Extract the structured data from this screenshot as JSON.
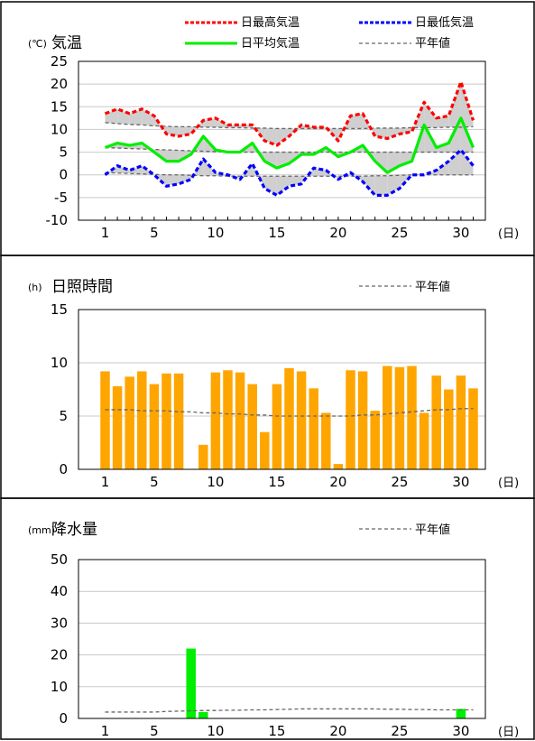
{
  "chart_data": [
    {
      "type": "line",
      "title": "気温",
      "unit": "(℃)",
      "x_unit": "(日)",
      "ylim": [
        -10,
        25
      ],
      "y_ticks": [
        25,
        20,
        15,
        10,
        5,
        0,
        -5,
        -10
      ],
      "x_ticks": [
        1,
        5,
        10,
        15,
        20,
        25,
        30
      ],
      "x": [
        1,
        2,
        3,
        4,
        5,
        6,
        7,
        8,
        9,
        10,
        11,
        12,
        13,
        14,
        15,
        16,
        17,
        18,
        19,
        20,
        21,
        22,
        23,
        24,
        25,
        26,
        27,
        28,
        29,
        30,
        31
      ],
      "series": [
        {
          "name": "日最高気温",
          "color": "#ff0000",
          "style": "dashed",
          "values": [
            13.5,
            14.5,
            13.5,
            14.5,
            13,
            9,
            8.5,
            9,
            12,
            12.5,
            11,
            11,
            11,
            7.5,
            6.5,
            8.5,
            11,
            10.5,
            10.5,
            7.5,
            13,
            13.5,
            8.5,
            8,
            9,
            9.5,
            16,
            12.5,
            13,
            20.5,
            12
          ]
        },
        {
          "name": "日最低気温",
          "color": "#0000ff",
          "style": "dashed",
          "values": [
            0,
            2,
            1,
            2,
            0,
            -2.5,
            -2,
            -1,
            3.5,
            0.5,
            0,
            -1,
            2.5,
            -3,
            -4.5,
            -2.5,
            -2,
            1.5,
            1,
            -1,
            0.5,
            -1.5,
            -4.5,
            -4.5,
            -3,
            0,
            0,
            1,
            3,
            5.5,
            2
          ]
        },
        {
          "name": "日平均気温",
          "color": "#00ee00",
          "style": "solid",
          "values": [
            6,
            7,
            6.5,
            7,
            5,
            3,
            3,
            4.5,
            8.5,
            5.5,
            5,
            5,
            7,
            3,
            1.5,
            2.5,
            4.5,
            4.5,
            6,
            4,
            5,
            6.5,
            3,
            0.5,
            2,
            3,
            11,
            6,
            7,
            12.5,
            6
          ]
        },
        {
          "name": "平年値",
          "color": "#666666",
          "style": "dashed",
          "values_max": [
            11.5,
            11.3,
            11.1,
            11,
            10.8,
            10.7,
            10.6,
            10.6,
            10.5,
            10.5,
            10.4,
            10.4,
            10.3,
            10.3,
            10.2,
            10.2,
            10.2,
            10.2,
            10.2,
            10.2,
            10.2,
            10.2,
            10.3,
            10.3,
            10.3,
            10.4,
            10.4,
            10.4,
            10.5,
            10.5,
            10.6
          ],
          "values_mean": [
            6,
            5.9,
            5.8,
            5.7,
            5.6,
            5.5,
            5.4,
            5.3,
            5.2,
            5.1,
            5,
            5,
            5,
            5,
            5,
            5,
            5,
            5,
            5,
            5,
            5,
            5,
            5,
            5,
            5,
            5,
            5,
            5,
            5,
            5,
            5
          ],
          "values_min": [
            0.5,
            0.4,
            0.3,
            0.2,
            0.1,
            0,
            0,
            -0.1,
            -0.2,
            -0.2,
            -0.3,
            -0.3,
            -0.3,
            -0.3,
            -0.3,
            -0.3,
            -0.3,
            -0.3,
            -0.3,
            -0.3,
            -0.3,
            -0.3,
            -0.2,
            -0.2,
            -0.1,
            0,
            0,
            0,
            0,
            0,
            0
          ]
        }
      ],
      "legend": [
        "日最高気温",
        "日最低気温",
        "日平均気温",
        "平年値"
      ],
      "grid": true
    },
    {
      "type": "bar",
      "title": "日照時間",
      "unit": "(h)",
      "x_unit": "(日)",
      "ylim": [
        0,
        15
      ],
      "y_ticks": [
        15,
        10,
        5,
        0
      ],
      "x_ticks": [
        1,
        5,
        10,
        15,
        20,
        25,
        30
      ],
      "x": [
        1,
        2,
        3,
        4,
        5,
        6,
        7,
        8,
        9,
        10,
        11,
        12,
        13,
        14,
        15,
        16,
        17,
        18,
        19,
        20,
        21,
        22,
        23,
        24,
        25,
        26,
        27,
        28,
        29,
        30,
        31
      ],
      "values": [
        9.2,
        7.8,
        8.7,
        9.2,
        8,
        9,
        9,
        0,
        2.3,
        9.1,
        9.3,
        9.1,
        8,
        3.5,
        8,
        9.5,
        9.2,
        7.6,
        5.3,
        0.5,
        9.3,
        9.2,
        5.5,
        9.7,
        9.6,
        9.7,
        5.3,
        8.8,
        7.5,
        8.8,
        7.6
      ],
      "bar_color": "#ffa500",
      "series": [
        {
          "name": "平年値",
          "color": "#666666",
          "style": "dashed",
          "values": [
            5.6,
            5.6,
            5.6,
            5.5,
            5.5,
            5.5,
            5.4,
            5.4,
            5.3,
            5.3,
            5.2,
            5.2,
            5.1,
            5.1,
            5,
            5,
            5,
            5,
            5,
            5,
            5,
            5.1,
            5.1,
            5.2,
            5.3,
            5.4,
            5.5,
            5.6,
            5.6,
            5.7,
            5.7
          ]
        }
      ],
      "legend": [
        "平年値"
      ],
      "grid": true
    },
    {
      "type": "bar",
      "title": "降水量",
      "unit": "(mm)",
      "x_unit": "(日)",
      "ylim": [
        0,
        50
      ],
      "y_ticks": [
        50,
        40,
        30,
        20,
        10,
        0
      ],
      "x_ticks": [
        1,
        5,
        10,
        15,
        20,
        25,
        30
      ],
      "x": [
        1,
        2,
        3,
        4,
        5,
        6,
        7,
        8,
        9,
        10,
        11,
        12,
        13,
        14,
        15,
        16,
        17,
        18,
        19,
        20,
        21,
        22,
        23,
        24,
        25,
        26,
        27,
        28,
        29,
        30,
        31
      ],
      "values": [
        0,
        0,
        0,
        0,
        0,
        0,
        0,
        22,
        2,
        0,
        0,
        0,
        0,
        0,
        0,
        0,
        0,
        0,
        0,
        0,
        0,
        0,
        0,
        0,
        0,
        0,
        0,
        0,
        0,
        3,
        0
      ],
      "bar_color": "#00ee00",
      "series": [
        {
          "name": "平年値",
          "color": "#666666",
          "style": "dashed",
          "values": [
            2,
            2,
            2,
            2,
            2,
            2.2,
            2.3,
            2.4,
            2.5,
            2.5,
            2.6,
            2.6,
            2.7,
            2.7,
            2.8,
            2.9,
            3,
            3,
            3,
            3,
            3,
            3,
            3,
            2.9,
            2.9,
            2.8,
            2.8,
            2.7,
            2.7,
            2.7,
            2.7
          ]
        }
      ],
      "legend": [
        "平年値"
      ],
      "grid": true
    }
  ]
}
